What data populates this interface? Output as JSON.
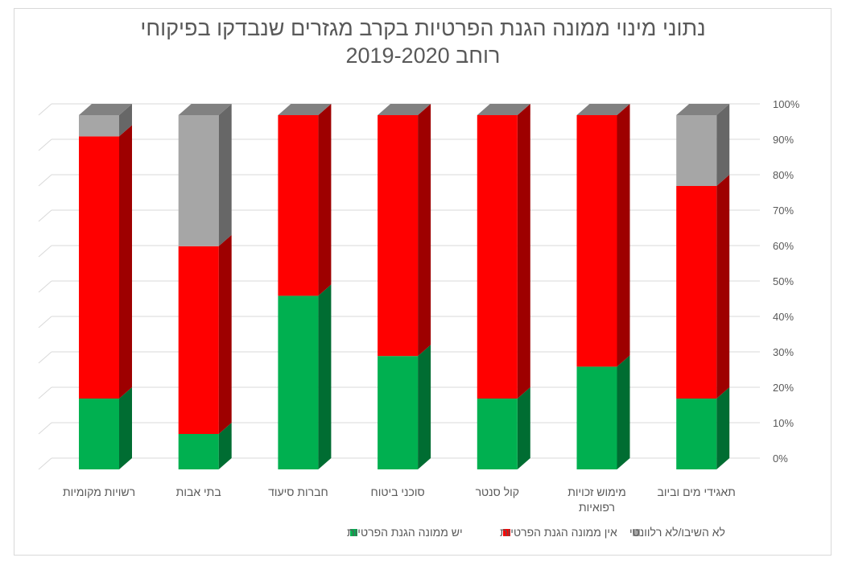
{
  "chart_data": {
    "type": "bar",
    "stacked": true,
    "three_d": true,
    "title_lines": [
      "נתוני מינוי ממונה הגנת הפרטיות בקרב מגזרים שנבדקו בפיקוחי",
      "רוחב 2019-2020"
    ],
    "categories": [
      [
        "רשויות מקומיות"
      ],
      [
        "בתי אבות"
      ],
      [
        "חברות סיעוד"
      ],
      [
        "סוכני ביטוח"
      ],
      [
        "קול סנטר"
      ],
      [
        "מימוש זכויות",
        "רפואיות"
      ],
      [
        "תאגידי מים וביוב"
      ]
    ],
    "series": [
      {
        "name": "יש ממונה הגנת הפרטיות",
        "color": "#00b050",
        "values": [
          20,
          10,
          49,
          32,
          20,
          29,
          20
        ]
      },
      {
        "name": "אין ממונה הגנת הפרטיות",
        "color": "#ff0000",
        "values": [
          74,
          53,
          51,
          68,
          80,
          71,
          60
        ]
      },
      {
        "name": "לא השיבו/לא רלוונטי",
        "color": "#a6a6a6",
        "values": [
          6,
          37,
          0,
          0,
          0,
          0,
          20
        ]
      }
    ],
    "y_ticks": [
      "0%",
      "10%",
      "20%",
      "30%",
      "40%",
      "50%",
      "60%",
      "70%",
      "80%",
      "90%",
      "100%"
    ],
    "ylim": [
      0,
      100
    ],
    "y_axis_side": "right",
    "grid": true,
    "legend_position": "bottom"
  }
}
